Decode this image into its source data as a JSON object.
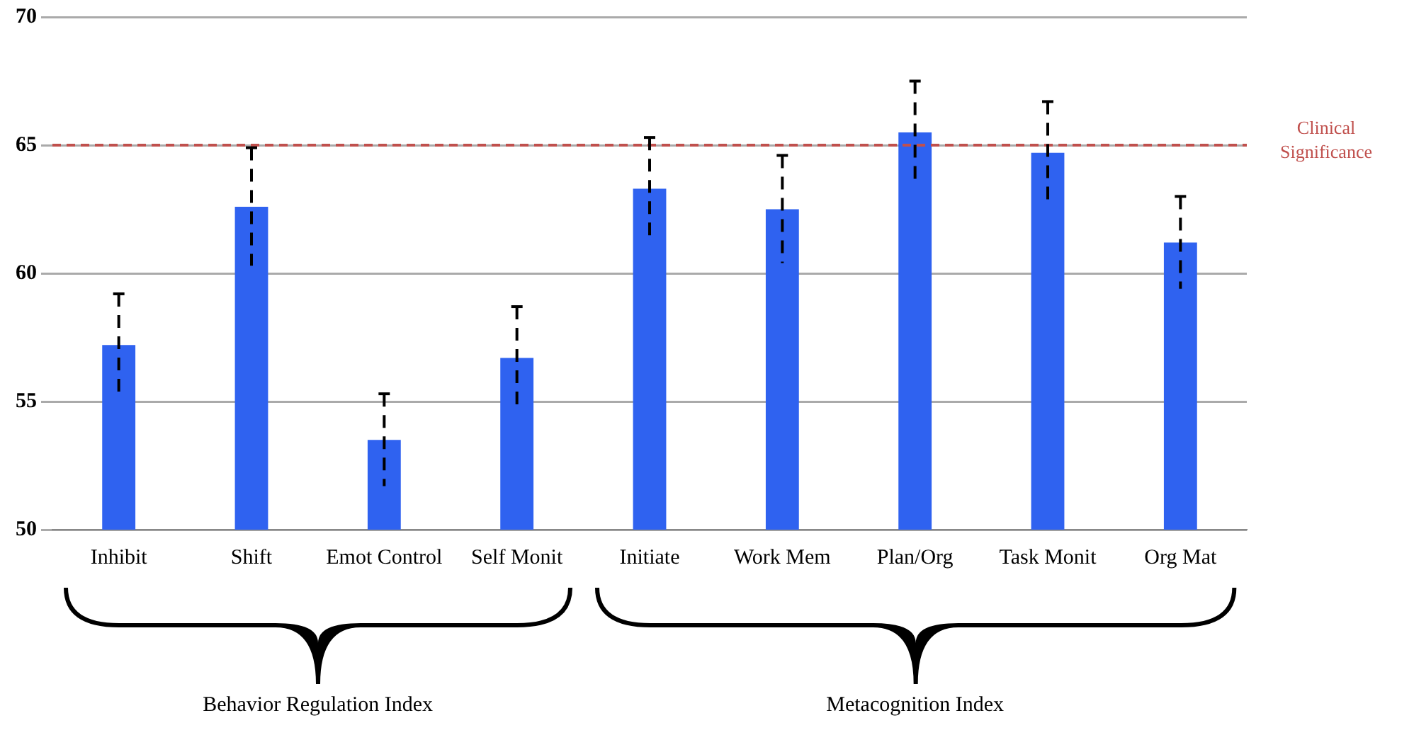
{
  "chart_data": {
    "type": "bar",
    "categories": [
      "Inhibit",
      "Shift",
      "Emot Control",
      "Self Monit",
      "Initiate",
      "Work Mem",
      "Plan/Org",
      "Task Monit",
      "Org Mat"
    ],
    "values": [
      57.2,
      62.6,
      53.5,
      56.7,
      63.3,
      62.5,
      65.5,
      64.7,
      61.2
    ],
    "errors": [
      2,
      2.3,
      1.8,
      2,
      2,
      2.1,
      2,
      2,
      1.8
    ],
    "color": "#2f62f0",
    "ylim": [
      50,
      70
    ],
    "yticks": [
      50,
      55,
      60,
      65,
      70
    ],
    "grid": "y",
    "legend": false,
    "ref_lines": [
      {
        "axis": "y",
        "value": 65,
        "label": "Clinical Significance",
        "color": "#c0504d",
        "line_style": "dashed"
      }
    ],
    "annotations": [
      "Behavior Regulation Index",
      "Metacognition Index"
    ]
  }
}
